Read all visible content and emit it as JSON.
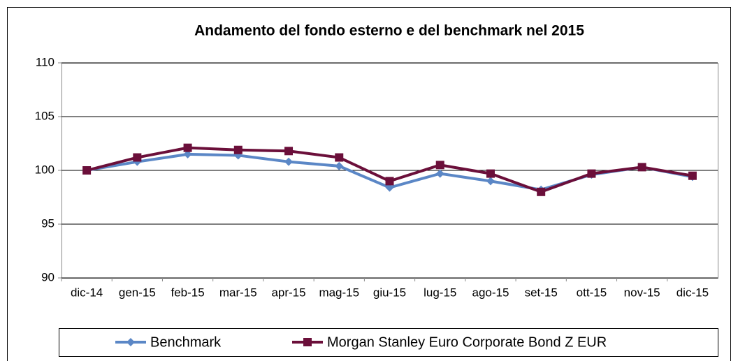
{
  "chart_data": {
    "type": "line",
    "title": "Andamento del fondo esterno e del benchmark nel 2015",
    "categories": [
      "dic-14",
      "gen-15",
      "feb-15",
      "mar-15",
      "apr-15",
      "mag-15",
      "giu-15",
      "lug-15",
      "ago-15",
      "set-15",
      "ott-15",
      "nov-15",
      "dic-15"
    ],
    "series": [
      {
        "name": "Benchmark",
        "color": "#5b87c6",
        "marker": "diamond",
        "values": [
          100,
          100.8,
          101.5,
          101.4,
          100.8,
          100.4,
          98.4,
          99.7,
          99.0,
          98.2,
          99.6,
          100.3,
          99.4
        ]
      },
      {
        "name": "Morgan Stanley Euro Corporate Bond Z EUR",
        "color": "#6b0f3a",
        "marker": "square",
        "values": [
          100,
          101.2,
          102.1,
          101.9,
          101.8,
          101.2,
          99.0,
          100.5,
          99.7,
          98.0,
          99.7,
          100.3,
          99.5
        ]
      }
    ],
    "ylim": [
      90,
      110
    ],
    "yticks": [
      90,
      95,
      100,
      105,
      110
    ],
    "grid": true,
    "legend": "bottom"
  }
}
